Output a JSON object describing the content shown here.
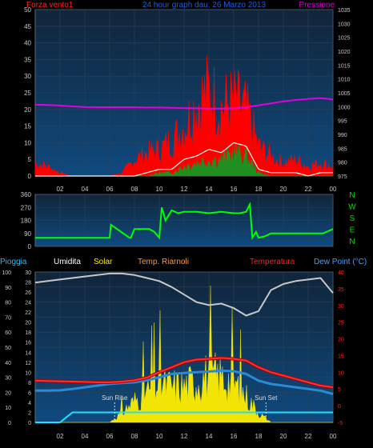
{
  "colors": {
    "background": "#000000",
    "plot_top": "#11253a",
    "plot_bottom": "#0f4a7f",
    "frame": "#5a6a7a",
    "axis_text": "#c8c8c8",
    "wind_gust": "#ff0000",
    "wind_avg": "#ffffff",
    "wind_speed": "#1f8f1f",
    "pressure": "#e000e0",
    "direction": "#00ff00",
    "humidity": "#c8c8c8",
    "solar": "#ffee00",
    "temp": "#ff3030",
    "temp_outline": "#aa0000",
    "dewpoint": "#2a8ad4",
    "rain": "#20e0ff",
    "pressure_label": "#e000e0",
    "compass": "#00dd00",
    "title_color": "#1f5fd8",
    "umidita_label": "#ffffff",
    "solar_label": "#ffee00",
    "riarnoli_label": "#ff9a30",
    "temperatura_label": "#ff2020",
    "dewpoint_label": "#4aa0ff",
    "pioggia_label": "#20c0ff",
    "forza_label": "#ff2020",
    "sun_marker": "#d8d8d8"
  },
  "header": {
    "wind_label": "Forza vento1",
    "title": "24 hour graph dau: 26 Marzo 2013",
    "pressure_label": "Pressione"
  },
  "x_axis": {
    "ticks": [
      "02",
      "04",
      "06",
      "08",
      "10",
      "12",
      "14",
      "16",
      "18",
      "20",
      "22",
      "00"
    ]
  },
  "compass": [
    "N",
    "W",
    "S",
    "E",
    "N"
  ],
  "bottom_labels": {
    "rain": "Pioggia",
    "humidity": "Umidita",
    "solar": "Solar",
    "temp_station": "Temp. Riarnoli",
    "temp": "Temperatura",
    "dewpoint": "Dew Point (°C)"
  },
  "sun_labels": {
    "rise": "Sun Rise",
    "set": "Sun Set"
  },
  "chart_data": [
    {
      "type": "line",
      "panel": "wind",
      "title": "24 hour graph dau: 26 Marzo 2013",
      "ylabel_left": "Forza vento1",
      "ylabel_right": "Pressione",
      "ylim_left": [
        0,
        50
      ],
      "ylim_right": [
        975,
        1035
      ],
      "yticks_left": [
        0,
        5,
        10,
        15,
        20,
        25,
        30,
        35,
        40,
        45,
        50
      ],
      "yticks_right": [
        975,
        980,
        985,
        990,
        995,
        1000,
        1005,
        1010,
        1015,
        1020,
        1025,
        1030,
        1035
      ],
      "xlim_hours": [
        0,
        24
      ],
      "grid": true,
      "series": [
        {
          "name": "Pressione",
          "axis": "right",
          "x": [
            0,
            1,
            2,
            3,
            4,
            5,
            6,
            7,
            8,
            9,
            10,
            11,
            12,
            13,
            14,
            15,
            16,
            17,
            18,
            19,
            20,
            21,
            22,
            23,
            24
          ],
          "values": [
            1000.7,
            1000.6,
            1000.4,
            1000.1,
            999.9,
            999.8,
            999.8,
            999.8,
            999.8,
            999.7,
            999.7,
            999.6,
            999.5,
            999.4,
            999.3,
            999.3,
            999.4,
            999.8,
            1000.5,
            1001.2,
            1001.9,
            1002.4,
            1002.8,
            1003.1,
            1002.6
          ]
        },
        {
          "name": "gust",
          "axis": "left",
          "x": [
            0,
            1,
            2,
            3,
            4,
            5,
            6,
            7,
            8,
            9,
            10,
            11,
            12,
            13,
            14,
            15,
            16,
            17,
            18,
            19,
            20,
            21,
            22,
            23,
            24
          ],
          "values": [
            4,
            3,
            1,
            0,
            0,
            0,
            0,
            1,
            5,
            7,
            8,
            11,
            15,
            22,
            26,
            21,
            23,
            20,
            9,
            6,
            4,
            5,
            3,
            4,
            3
          ]
        },
        {
          "name": "average",
          "axis": "left",
          "x": [
            0,
            1,
            2,
            3,
            4,
            5,
            6,
            7,
            8,
            9,
            10,
            11,
            12,
            13,
            14,
            15,
            16,
            17,
            18,
            19,
            20,
            21,
            22,
            23,
            24
          ],
          "values": [
            0,
            0,
            0,
            0,
            0,
            0,
            0,
            0,
            0,
            1,
            2,
            2,
            5,
            6,
            8,
            7,
            10,
            9,
            2,
            1,
            1,
            1,
            0,
            1,
            1
          ]
        },
        {
          "name": "speed",
          "axis": "left",
          "x": [
            0,
            1,
            2,
            3,
            4,
            5,
            6,
            7,
            8,
            9,
            10,
            11,
            12,
            13,
            14,
            15,
            16,
            17,
            18,
            19,
            20,
            21,
            22,
            23,
            24
          ],
          "values": [
            0,
            0,
            0,
            0,
            0,
            0,
            0,
            0,
            0,
            0,
            1,
            1,
            3,
            4,
            5,
            5,
            7,
            6,
            1,
            0,
            0,
            0,
            0,
            0,
            0
          ]
        }
      ]
    },
    {
      "type": "line",
      "panel": "direction",
      "ylim": [
        0,
        360
      ],
      "yticks": [
        0,
        90,
        180,
        270,
        360
      ],
      "xlim_hours": [
        0,
        24
      ],
      "series": [
        {
          "name": "direzione",
          "x": [
            0,
            3,
            3.9,
            4.0,
            5.8,
            6.0,
            6.1,
            7.6,
            7.7,
            8.0,
            8.2,
            9.2,
            9.6,
            10.0,
            10.2,
            10.5,
            11.0,
            11.5,
            12.0,
            13.0,
            14.0,
            15.0,
            16.0,
            16.5,
            17.0,
            17.3,
            17.5,
            17.8,
            18.0,
            18.5,
            19.0,
            21.0,
            22.0,
            23.0,
            23.2,
            24.0
          ],
          "values": [
            60,
            60,
            60,
            60,
            60,
            60,
            150,
            60,
            60,
            120,
            120,
            120,
            100,
            60,
            270,
            180,
            250,
            230,
            240,
            240,
            230,
            240,
            230,
            230,
            240,
            290,
            60,
            100,
            60,
            70,
            90,
            90,
            90,
            90,
            90,
            120
          ]
        }
      ]
    },
    {
      "type": "line",
      "panel": "temperature",
      "ylabel_left": "Umidita",
      "ylabel_right": "Dew Point (°C)",
      "ylim_left": [
        0,
        100
      ],
      "ylim_right": [
        -5,
        40
      ],
      "yticks_left": [
        0,
        10,
        20,
        30,
        40,
        50,
        60,
        70,
        80,
        90,
        100
      ],
      "yticks_right": [
        -5,
        0,
        5,
        10,
        15,
        20,
        25,
        30,
        35,
        40
      ],
      "yticks_rain": [
        0,
        2,
        4,
        6,
        8,
        10,
        12,
        14,
        16,
        18,
        20,
        22,
        24,
        26,
        28,
        30
      ],
      "xlim_hours": [
        0,
        24
      ],
      "grid": true,
      "series": [
        {
          "name": "Umidita",
          "axis": "left",
          "x": [
            0,
            1,
            2,
            3,
            4,
            5,
            6,
            7,
            8,
            9,
            10,
            11,
            12,
            13,
            14,
            15,
            16,
            17,
            18,
            19,
            20,
            21,
            22,
            23,
            24
          ],
          "values": [
            93,
            94,
            95,
            96,
            97,
            98,
            99,
            99,
            98,
            96,
            94,
            90,
            85,
            80,
            78,
            79,
            76,
            71,
            74,
            88,
            92,
            94,
            95,
            96,
            86
          ]
        },
        {
          "name": "Temperatura",
          "axis": "right",
          "x": [
            0,
            1,
            2,
            3,
            4,
            5,
            6,
            7,
            8,
            9,
            10,
            11,
            12,
            13,
            14,
            15,
            16,
            17,
            18,
            19,
            20,
            21,
            22,
            23,
            24
          ],
          "values": [
            7.5,
            7.4,
            7.3,
            7.2,
            7.1,
            7.0,
            7.0,
            7.2,
            7.6,
            8.4,
            10,
            11.5,
            13,
            13.8,
            14.0,
            14.3,
            14.0,
            13.5,
            11.5,
            10.0,
            9.0,
            8.0,
            7.0,
            6.0,
            5.5
          ]
        },
        {
          "name": "Dew Point",
          "axis": "right",
          "x": [
            0,
            1,
            2,
            3,
            4,
            5,
            6,
            7,
            8,
            9,
            10,
            11,
            12,
            13,
            14,
            15,
            16,
            17,
            18,
            19,
            20,
            21,
            22,
            23,
            24
          ],
          "values": [
            4.5,
            4.5,
            4.6,
            5,
            5.5,
            6,
            6.5,
            6.8,
            7.0,
            7.6,
            8.5,
            9.5,
            9.8,
            10.0,
            10.2,
            10.5,
            10.3,
            9.5,
            7.5,
            6.5,
            6.0,
            5.5,
            5.0,
            4.5,
            3.5
          ]
        },
        {
          "name": "Solar",
          "axis": "left",
          "x": [
            0,
            6,
            7,
            8,
            9,
            10,
            11,
            12,
            13,
            14,
            15,
            16,
            17,
            18,
            19,
            24
          ],
          "values": [
            0,
            0,
            8,
            18,
            25,
            32,
            30,
            30,
            35,
            40,
            38,
            33,
            22,
            8,
            0,
            0
          ]
        },
        {
          "name": "Pioggia",
          "axis": "rain",
          "x": [
            0,
            1,
            2,
            2.5,
            3,
            3.5,
            24
          ],
          "values": [
            0,
            0,
            0,
            1,
            2,
            2,
            2
          ]
        }
      ],
      "sun_rise_hour": 6.4,
      "sun_set_hour": 18.6
    }
  ]
}
